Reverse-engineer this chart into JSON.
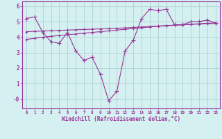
{
  "x": [
    0,
    1,
    2,
    3,
    4,
    5,
    6,
    7,
    8,
    9,
    10,
    11,
    12,
    13,
    14,
    15,
    16,
    17,
    18,
    19,
    20,
    21,
    22,
    23
  ],
  "windchill": [
    5.2,
    5.3,
    4.3,
    3.7,
    3.6,
    4.3,
    3.1,
    2.5,
    2.7,
    1.6,
    -0.1,
    0.5,
    3.1,
    3.8,
    5.2,
    5.8,
    5.7,
    5.8,
    4.8,
    4.8,
    5.0,
    5.0,
    5.1,
    4.9
  ],
  "avg_line_upper": [
    4.35,
    4.37,
    4.39,
    4.41,
    4.43,
    4.45,
    4.47,
    4.49,
    4.51,
    4.53,
    4.55,
    4.57,
    4.59,
    4.62,
    4.65,
    4.68,
    4.71,
    4.74,
    4.77,
    4.8,
    4.83,
    4.86,
    4.89,
    4.92
  ],
  "avg_line_lower": [
    3.85,
    3.92,
    3.99,
    4.05,
    4.1,
    4.15,
    4.2,
    4.25,
    4.3,
    4.35,
    4.4,
    4.45,
    4.5,
    4.55,
    4.6,
    4.65,
    4.7,
    4.73,
    4.76,
    4.79,
    4.82,
    4.84,
    4.86,
    4.88
  ],
  "line_color": "#993399",
  "bg_color": "#d4f0f0",
  "grid_color": "#aacccc",
  "xlabel": "Windchill (Refroidissement éolien,°C)",
  "ylim": [
    -0.6,
    6.3
  ],
  "xlim": [
    -0.5,
    23.5
  ],
  "yticks": [
    0,
    1,
    2,
    3,
    4,
    5,
    6
  ],
  "ytick_labels": [
    "-0",
    "1",
    "2",
    "3",
    "4",
    "5",
    "6"
  ],
  "xticks": [
    0,
    1,
    2,
    3,
    4,
    5,
    6,
    7,
    8,
    9,
    10,
    11,
    12,
    13,
    14,
    15,
    16,
    17,
    18,
    19,
    20,
    21,
    22,
    23
  ]
}
